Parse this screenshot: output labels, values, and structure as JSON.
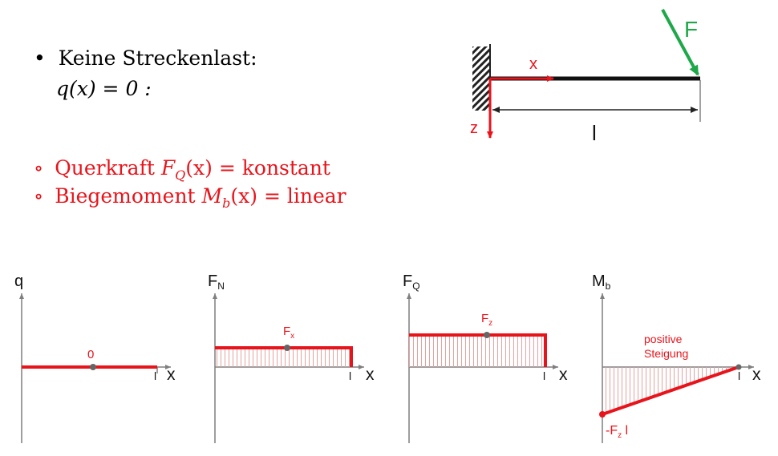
{
  "text": {
    "bullet_glyph": "•",
    "circle_glyph": "∘",
    "item1": "Keine Streckenlast:",
    "item1_eq": "q(x) = 0 :",
    "item2_prefix": "Querkraft ",
    "item2_math": "F",
    "item2_sub": "Q",
    "item2_rest": "(x) = konstant",
    "item3_prefix": "Biegemoment ",
    "item3_math": "M",
    "item3_sub": "b",
    "item3_rest": "(x) = linear"
  },
  "beam": {
    "force_label": "F",
    "x_label": "x",
    "z_label": "z",
    "length_label": "l"
  },
  "diagrams": [
    {
      "axis_label": "q",
      "axis_sub": "",
      "value_label": "0",
      "value_sub": "",
      "length_label": "l",
      "x_label": "x"
    },
    {
      "axis_label": "F",
      "axis_sub": "N",
      "value_label": "F",
      "value_sub": "x",
      "length_label": "l",
      "x_label": "x"
    },
    {
      "axis_label": "F",
      "axis_sub": "Q",
      "value_label": "F",
      "value_sub": "z",
      "length_label": "l",
      "x_label": "x"
    },
    {
      "axis_label": "M",
      "axis_sub": "b",
      "value_label": "-F",
      "value_sub": "z",
      "value_suffix": " l",
      "note_line1": "positive",
      "note_line2": "Steigung",
      "length_label": "l",
      "x_label": "x"
    }
  ],
  "colors": {
    "red": "#e8141b",
    "green": "#1fa84a",
    "axis": "#7f7f7f",
    "hatch": "#e8a0a0"
  }
}
